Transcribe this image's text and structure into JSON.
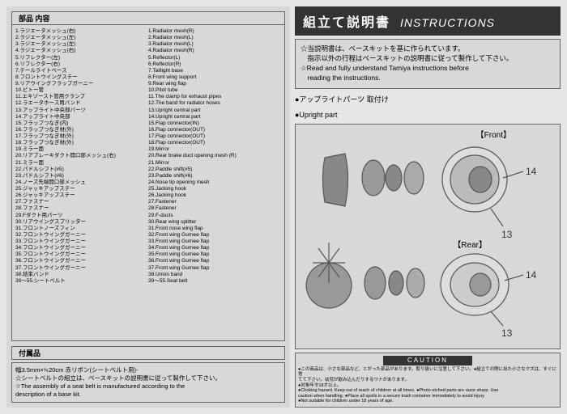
{
  "tabs": {
    "parts": "部品 内容",
    "accessories": "付属品"
  },
  "parts_jp": [
    "1.ラジエータメッシュ(右)",
    "2.ラジエータメッシュ(左)",
    "3.ラジエータメッシュ(左)",
    "4.ラジエータメッシュ(右)",
    "5.リフレクター(左)",
    "6.リフレクター(右)",
    "7.テールライトベース",
    "8.フロントウイングステー",
    "9.リアウイングフラップガーニー",
    "10.ピトー管",
    "11.エキゾースト管用クランプ",
    "12.ラエータホース用バンド",
    "13.アップライト中央部パーツ",
    "14.アップライト中央部",
    "15.フラップつなぎ(内)",
    "16.フラップつなぎ材(外)",
    "17.フラップつなぎ材(外)",
    "18.フラップつなぎ材(外)",
    "19.ミラー面",
    "20.リアブレーキダクト開口部メッシュ(右)",
    "21.ミラー面",
    "22.パドルシフト(#5)",
    "23.パドルシフト(#6)",
    "24.ノーズ先端開口部メッシュ",
    "25.ジャッキアップステー",
    "26.ジャッキアップステー",
    "27.ファスナー",
    "28.ファスナー",
    "29.Fダクト用パーツ",
    "30.リアウイングスプリッター",
    "31.フロントノーズフィン",
    "32.フロントウイングガーニー",
    "33.フロントウイングガーニー",
    "34.フロントウイングガーニー",
    "35.フロントウイングガーニー",
    "36.フロントウイングガーニー",
    "37.フロントウイングガーニー",
    "38.結束バンド",
    "39～55.シートベルト"
  ],
  "parts_en": [
    "1.Radiator mesh(R)",
    "2.Radiator mesh(L)",
    "3.Radiator mesh(L)",
    "4.Radiator mesh(R)",
    "5.Reflector(L)",
    "6.Reflector(R)",
    "7.Taillight base",
    "8.Front wing support",
    "9.Rear wing flap",
    "10.Pitot tube",
    "11.The clamp for exhaust pipes",
    "12.The band for radiator hoses",
    "13.Upright central part",
    "14.Upright central part",
    "15.Flap connector(IN)",
    "16.Flap connector(OUT)",
    "17.Flap connector(OUT)",
    "18.Flap connector(OUT)",
    "19.Mirror",
    "20.Rear brake duct opening mesh (R)",
    "21.Mirror",
    "22.Paddle shift(#5)",
    "23.Paddle shift(#6)",
    "24.Nose tip opening mesh",
    "25.Jacking hook",
    "26.Jacking hook",
    "27.Fastener",
    "28.Fastener",
    "29.F-ducts",
    "30.Rear wing splitter",
    "31.Front nose wing flap",
    "32.Front wing Gurnee flap",
    "33.Front wing Gurnee flap",
    "34.Front wing Gurnee flap",
    "35.Front wing Gurnee flap",
    "36.Front wing Gurnee flap",
    "37.Front wing Gurnee flap",
    "38.Union band",
    "39～55.Seat belt"
  ],
  "accessories": {
    "line1": "幅3.5mm×≒20cm 赤リボン(シートベルト用)-",
    "line2": "☆シートベルトの組立は、ベースキットの説明書に従って製作して下さい。",
    "line3": "☆The assembly of a seat belt is manufactured according to the",
    "line4": "description of a base kit."
  },
  "header": {
    "jp": "組立て説明書",
    "en": "INSTRUCTIONS"
  },
  "notes": {
    "n1": "☆当説明書は、ベースキットを基に作られています。",
    "n2": "　指示以外の行程はベースキットの説明書に従って製作して下さい。",
    "n3": "☆Read and fully understand Tamiya instructions before",
    "n4": "　reading the instructions."
  },
  "upright": {
    "jp": "●アップライトパーツ 取付け",
    "en": "●Upright part"
  },
  "diagram": {
    "front": "【Front】",
    "rear": "【Rear】",
    "num13": "13",
    "num14": "14"
  },
  "caution": {
    "title": "CAUTION",
    "l1": "●この商品は、小さな部品など、とがった部品があります。取り扱いに注意して下さい。●組立ての際に出た小さなクズは、すぐに捨",
    "l2": "てて下さい。幼児が飲み込んだりするワナがあります。",
    "l3": "●対象年令18才以上。",
    "l4": "●Choking hazard. Keep out of reach of children at all times. ●Photo etched parts are razor sharp. Use",
    "l5": "caution when handling. ●Place all spoils in a secure trash container immediately to avoid injury",
    "l6": "●Not suitable for children under 18 years of age."
  },
  "colors": {
    "bg": "#e6e6e6",
    "panel": "#d8d8d8",
    "dark": "#333333",
    "ink": "#444444"
  }
}
